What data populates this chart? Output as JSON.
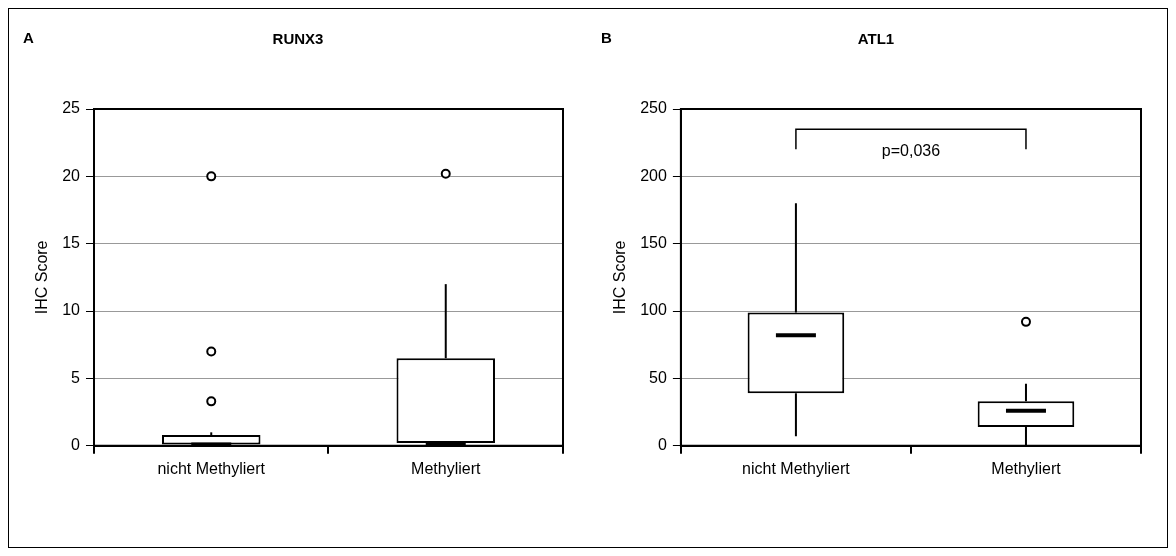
{
  "chart_data": [
    {
      "type": "box",
      "title": "RUNX3",
      "ylabel": "IHC Score",
      "categories": [
        "nicht Methyliert",
        "Methyliert"
      ],
      "ylim": [
        0,
        25
      ],
      "yticks": [
        0,
        5,
        10,
        15,
        20,
        25
      ],
      "grid": "y",
      "annotations": [
        "A"
      ],
      "boxes": [
        {
          "low": 0.1,
          "q1": 0.1,
          "median": 0.1,
          "q3": 0.8,
          "high": 1,
          "outliers": [
            3.3,
            7,
            20
          ]
        },
        {
          "low": 0.2,
          "q1": 0.2,
          "median": 0.2,
          "q3": 6.5,
          "high": 12,
          "outliers": [
            20.2
          ]
        }
      ]
    },
    {
      "type": "box",
      "title": "ATL1",
      "ylabel": "IHC Score",
      "categories": [
        "nicht Methyliert",
        "Methyliert"
      ],
      "ylim": [
        0,
        250
      ],
      "yticks": [
        0,
        50,
        100,
        150,
        200,
        250
      ],
      "grid": "y",
      "annotations": [
        "B",
        "p=0,036"
      ],
      "boxes": [
        {
          "low": 7,
          "q1": 39,
          "median": 82,
          "q3": 99,
          "high": 180
        },
        {
          "low": 0,
          "q1": 14,
          "median": 26,
          "q3": 33,
          "high": 46,
          "outliers": [
            92
          ]
        }
      ]
    }
  ]
}
